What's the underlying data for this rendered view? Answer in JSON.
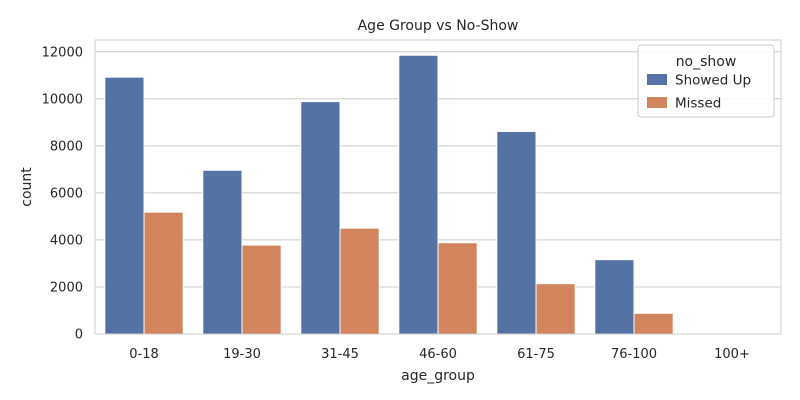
{
  "chart_data": {
    "type": "bar",
    "title": "Age Group vs No-Show",
    "xlabel": "age_group",
    "ylabel": "count",
    "categories": [
      "0-18",
      "19-30",
      "31-45",
      "46-60",
      "61-75",
      "76-100",
      "100+"
    ],
    "series": [
      {
        "name": "Showed Up",
        "color": "#5572a5",
        "values": [
          10920,
          6960,
          9880,
          11850,
          8610,
          3160,
          0
        ]
      },
      {
        "name": "Missed",
        "color": "#d2855c",
        "values": [
          5180,
          3780,
          4500,
          3880,
          2140,
          880,
          0
        ]
      }
    ],
    "ylim": [
      0,
      12500
    ],
    "yticks": [
      0,
      2000,
      4000,
      6000,
      8000,
      10000,
      12000
    ],
    "grid": true,
    "legend": {
      "title": "no_show",
      "placement": "top-right"
    }
  }
}
